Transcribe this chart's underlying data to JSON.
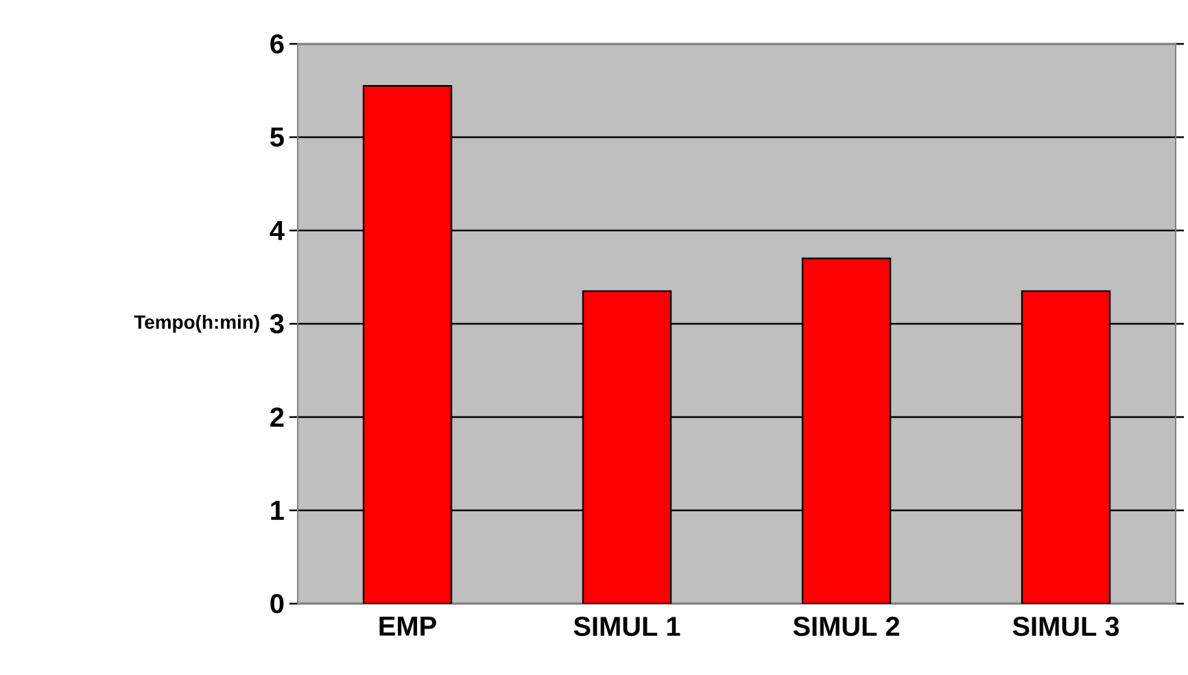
{
  "chart_data": {
    "type": "bar",
    "ylabel": "Tempo(h:min)",
    "categories": [
      "EMP",
      "SIMUL 1",
      "SIMUL 2",
      "SIMUL 3"
    ],
    "values": [
      5.55,
      3.35,
      3.7,
      3.35
    ],
    "color": "#ff0000",
    "ylim": [
      0,
      6
    ],
    "yticks": [
      0,
      1,
      2,
      3,
      4,
      5,
      6
    ],
    "grid": "y"
  }
}
